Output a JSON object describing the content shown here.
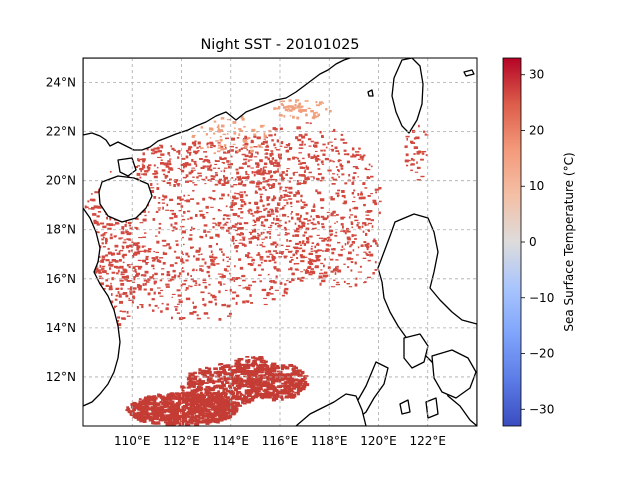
{
  "title": "Night SST - 20101025",
  "map": {
    "lon_range": [
      108,
      124
    ],
    "lat_range": [
      10,
      25
    ],
    "lon_ticks": [
      {
        "value": 110,
        "label": "110°E"
      },
      {
        "value": 112,
        "label": "112°E"
      },
      {
        "value": 114,
        "label": "114°E"
      },
      {
        "value": 116,
        "label": "116°E"
      },
      {
        "value": 118,
        "label": "118°E"
      },
      {
        "value": 120,
        "label": "120°E"
      },
      {
        "value": 122,
        "label": "122°E"
      }
    ],
    "lat_ticks": [
      {
        "value": 12,
        "label": "12°N"
      },
      {
        "value": 14,
        "label": "14°N"
      },
      {
        "value": 16,
        "label": "16°N"
      },
      {
        "value": 18,
        "label": "18°N"
      },
      {
        "value": 20,
        "label": "20°N"
      },
      {
        "value": 22,
        "label": "22°N"
      },
      {
        "value": 24,
        "label": "24°N"
      }
    ],
    "gridlines": true,
    "colormap": "coolwarm",
    "colors": {
      "warm": "#d1493f",
      "mid_warm": "#c43c34",
      "light_warm": "#f0a07d",
      "coast": "#000000",
      "grid": "#aaaaaa"
    }
  },
  "colorbar": {
    "label": "Sea Surface Temperature (°C)",
    "range": [
      -33,
      33
    ],
    "ticks": [
      {
        "value": 30,
        "label": "30"
      },
      {
        "value": 20,
        "label": "20"
      },
      {
        "value": 10,
        "label": "10"
      },
      {
        "value": 0,
        "label": "0"
      },
      {
        "value": -10,
        "label": "−10"
      },
      {
        "value": -20,
        "label": "−20"
      },
      {
        "value": -30,
        "label": "−30"
      }
    ]
  }
}
